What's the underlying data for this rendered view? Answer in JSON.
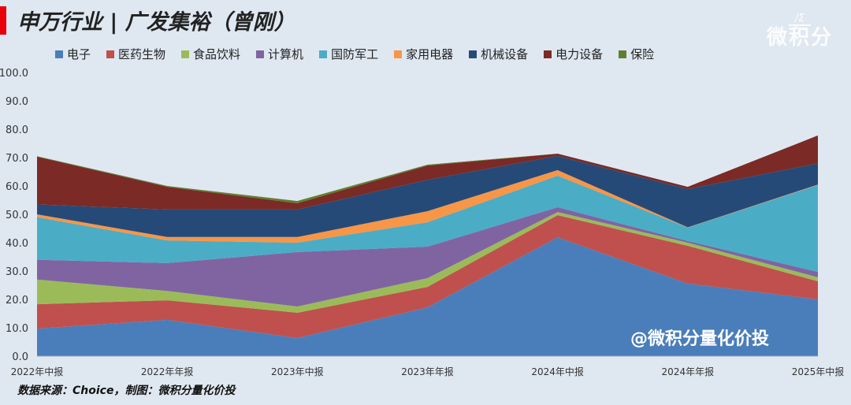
{
  "title": "申万行业 | 广发集裕（曾刚）",
  "logo": {
    "mark": "/Σ",
    "name": "微积分",
    "sub": "量化价投"
  },
  "watermark": "@微积分量化价投",
  "footer": "数据来源：Choice，制图：微积分量化价投",
  "chart_data": {
    "type": "area",
    "stacked": true,
    "grid": false,
    "legend_placement": "top",
    "categories": [
      "2022年中报",
      "2022年年报",
      "2023年中报",
      "2023年年报",
      "2024年中报",
      "2024年年报",
      "2025年中报"
    ],
    "ylim": [
      0,
      100
    ],
    "yticks": [
      "0.0",
      "10.0",
      "20.0",
      "30.0",
      "40.0",
      "50.0",
      "60.0",
      "70.0",
      "80.0",
      "90.0",
      "100.0"
    ],
    "series": [
      {
        "name": "电子",
        "color": "#4a7ebb",
        "values": [
          9.7,
          12.8,
          6.4,
          17.2,
          41.9,
          25.6,
          20.0
        ]
      },
      {
        "name": "医药生物",
        "color": "#c0504d",
        "values": [
          8.6,
          6.9,
          8.9,
          7.2,
          7.8,
          13.3,
          6.4
        ]
      },
      {
        "name": "食品饮料",
        "color": "#9bbb59",
        "values": [
          8.7,
          3.3,
          2.2,
          3.1,
          1.1,
          1.1,
          1.4
        ]
      },
      {
        "name": "计算机",
        "color": "#8064a2",
        "values": [
          7.0,
          9.8,
          19.2,
          11.1,
          1.7,
          0.6,
          1.9
        ]
      },
      {
        "name": "国防军工",
        "color": "#4bacc6",
        "values": [
          15.0,
          8.0,
          3.3,
          8.6,
          11.1,
          4.7,
          30.6
        ]
      },
      {
        "name": "家用电器",
        "color": "#f79646",
        "values": [
          1.0,
          1.2,
          2.0,
          3.9,
          2.0,
          0.1,
          0.2
        ]
      },
      {
        "name": "机械设备",
        "color": "#264a77",
        "values": [
          3.5,
          9.7,
          9.7,
          11.1,
          5.0,
          13.5,
          7.5
        ]
      },
      {
        "name": "电力设备",
        "color": "#7b2a25",
        "values": [
          16.8,
          8.0,
          2.2,
          5.0,
          0.8,
          0.8,
          9.8
        ]
      },
      {
        "name": "保险",
        "color": "#5f7f30",
        "values": [
          0.2,
          0.3,
          0.8,
          0.3,
          0.0,
          0.0,
          0.0
        ]
      }
    ]
  }
}
